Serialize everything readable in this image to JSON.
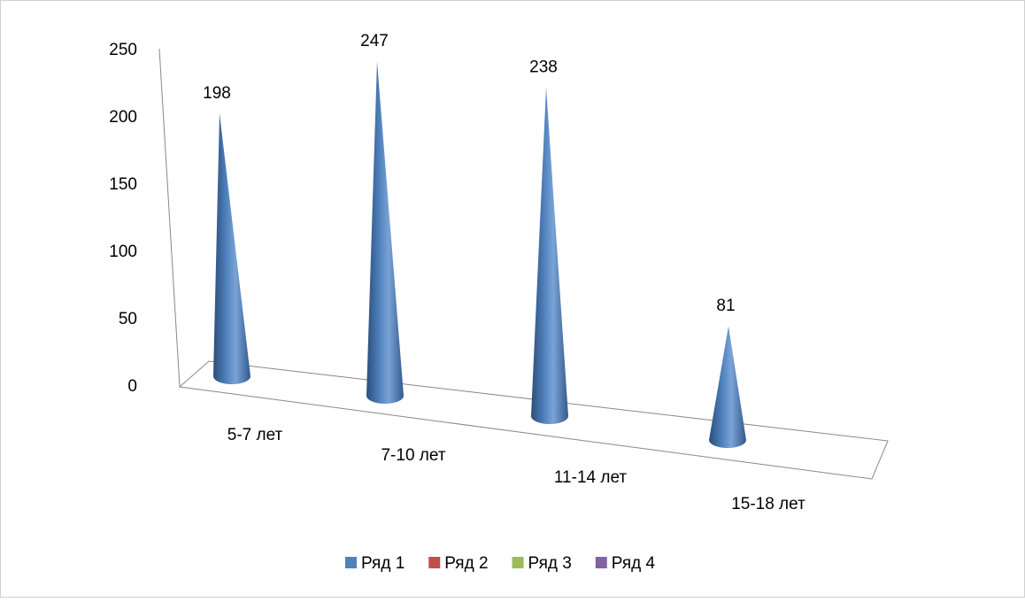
{
  "chart_data": {
    "type": "cone3d",
    "categories": [
      "5-7 лет",
      "7-10 лет",
      "11-14 лет",
      "15-18 лет"
    ],
    "series": [
      {
        "name": "Ряд 1",
        "color": "#4f81bd",
        "values": [
          198,
          247,
          238,
          81
        ]
      },
      {
        "name": "Ряд 2",
        "color": "#c0504d",
        "values": [
          null,
          null,
          null,
          null
        ]
      },
      {
        "name": "Ряд 3",
        "color": "#9bbb59",
        "values": [
          null,
          null,
          null,
          null
        ]
      },
      {
        "name": "Ряд 4",
        "color": "#8064a2",
        "values": [
          null,
          null,
          null,
          null
        ]
      }
    ],
    "ylim": [
      0,
      250
    ],
    "yticks": [
      0,
      50,
      100,
      150,
      200,
      250
    ],
    "legend": "bottom"
  }
}
